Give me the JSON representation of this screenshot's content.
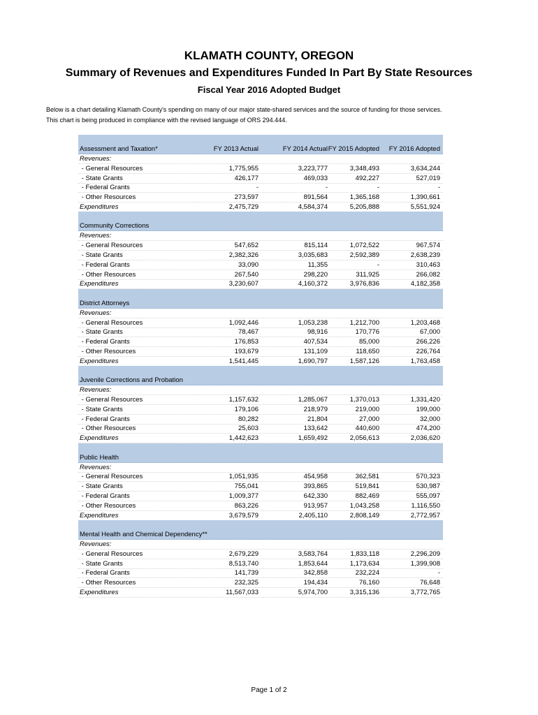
{
  "header": {
    "title": "KLAMATH COUNTY, OREGON",
    "subtitle": "Summary of Revenues and Expenditures Funded In Part By State Resources",
    "fiscal_year": "Fiscal Year 2016 Adopted Budget"
  },
  "intro": [
    "Below is a chart detailing Klamath County's spending on many of our major state-shared services and the source of funding for those services.",
    "This chart is being produced in compliance with the revised language of ORS 294.444."
  ],
  "table": {
    "columns": [
      "FY 2013 Actual",
      "FY 2014 Actual",
      "FY 2015 Adopted",
      "FY 2016 Adopted"
    ],
    "sections": [
      {
        "name": "Assessment and Taxation*",
        "revenues_label": "Revenues:",
        "rows": [
          {
            "label": " - General Resources",
            "values": [
              "1,775,955",
              "3,223,777",
              "3,348,493",
              "3,634,244"
            ]
          },
          {
            "label": " - State Grants",
            "values": [
              "426,177",
              "469,033",
              "492,227",
              "527,019"
            ]
          },
          {
            "label": " - Federal Grants",
            "values": [
              "-",
              "-",
              "-",
              "-"
            ]
          },
          {
            "label": " - Other Resources",
            "values": [
              "273,597",
              "891,564",
              "1,365,168",
              "1,390,661"
            ]
          },
          {
            "label": "Expenditures",
            "values": [
              "2,475,729",
              "4,584,374",
              "5,205,888",
              "5,551,924"
            ]
          }
        ]
      },
      {
        "name": "Community Corrections",
        "revenues_label": "Revenues:",
        "rows": [
          {
            "label": " - General Resources",
            "values": [
              "547,652",
              "815,114",
              "1,072,522",
              "967,574"
            ]
          },
          {
            "label": " - State Grants",
            "values": [
              "2,382,326",
              "3,035,683",
              "2,592,389",
              "2,638,239"
            ]
          },
          {
            "label": " - Federal Grants",
            "values": [
              "33,090",
              "11,355",
              "-",
              "310,463"
            ]
          },
          {
            "label": " - Other Resources",
            "values": [
              "267,540",
              "298,220",
              "311,925",
              "266,082"
            ]
          },
          {
            "label": "Expenditures",
            "values": [
              "3,230,607",
              "4,160,372",
              "3,976,836",
              "4,182,358"
            ]
          }
        ]
      },
      {
        "name": "District Attorneys",
        "revenues_label": "Revenues:",
        "rows": [
          {
            "label": " - General Resources",
            "values": [
              "1,092,446",
              "1,053,238",
              "1,212,700",
              "1,203,468"
            ]
          },
          {
            "label": " - State Grants",
            "values": [
              "78,467",
              "98,916",
              "170,776",
              "67,000"
            ]
          },
          {
            "label": " - Federal Grants",
            "values": [
              "176,853",
              "407,534",
              "85,000",
              "266,226"
            ]
          },
          {
            "label": " - Other Resources",
            "values": [
              "193,679",
              "131,109",
              "118,650",
              "226,764"
            ]
          },
          {
            "label": "Expenditures",
            "values": [
              "1,541,445",
              "1,690,797",
              "1,587,126",
              "1,763,458"
            ]
          }
        ]
      },
      {
        "name": "Juvenile Corrections and Probation",
        "revenues_label": "Revenues:",
        "rows": [
          {
            "label": " - General Resources",
            "values": [
              "1,157,632",
              "1,285,067",
              "1,370,013",
              "1,331,420"
            ]
          },
          {
            "label": " - State Grants",
            "values": [
              "179,106",
              "218,979",
              "219,000",
              "199,000"
            ]
          },
          {
            "label": " - Federal Grants",
            "values": [
              "80,282",
              "21,804",
              "27,000",
              "32,000"
            ]
          },
          {
            "label": " - Other Resources",
            "values": [
              "25,603",
              "133,642",
              "440,600",
              "474,200"
            ]
          },
          {
            "label": "Expenditures",
            "values": [
              "1,442,623",
              "1,659,492",
              "2,056,613",
              "2,036,620"
            ]
          }
        ]
      },
      {
        "name": "Public Health",
        "revenues_label": "Revenues:",
        "rows": [
          {
            "label": " - General Resources",
            "values": [
              "1,051,935",
              "454,958",
              "362,581",
              "570,323"
            ]
          },
          {
            "label": " - State Grants",
            "values": [
              "755,041",
              "393,865",
              "519,841",
              "530,987"
            ]
          },
          {
            "label": " - Federal Grants",
            "values": [
              "1,009,377",
              "642,330",
              "882,469",
              "555,097"
            ]
          },
          {
            "label": " - Other Resources",
            "values": [
              "863,226",
              "913,957",
              "1,043,258",
              "1,116,550"
            ]
          },
          {
            "label": "Expenditures",
            "values": [
              "3,679,579",
              "2,405,110",
              "2,808,149",
              "2,772,957"
            ]
          }
        ]
      },
      {
        "name": "Mental Health and Chemical Dependency**",
        "revenues_label": "Revenues:",
        "rows": [
          {
            "label": " - General Resources",
            "values": [
              "2,679,229",
              "3,583,764",
              "1,833,118",
              "2,296,209"
            ]
          },
          {
            "label": " - State Grants",
            "values": [
              "8,513,740",
              "1,853,644",
              "1,173,634",
              "1,399,908"
            ]
          },
          {
            "label": " - Federal Grants",
            "values": [
              "141,739",
              "342,858",
              "232,224",
              "-"
            ]
          },
          {
            "label": " - Other Resources",
            "values": [
              "232,325",
              "194,434",
              "76,160",
              "76,648"
            ]
          },
          {
            "label": "Expenditures",
            "values": [
              "11,567,033",
              "5,974,700",
              "3,315,136",
              "3,772,765"
            ]
          }
        ]
      }
    ]
  },
  "footer": {
    "page": "Page 1 of 2"
  }
}
